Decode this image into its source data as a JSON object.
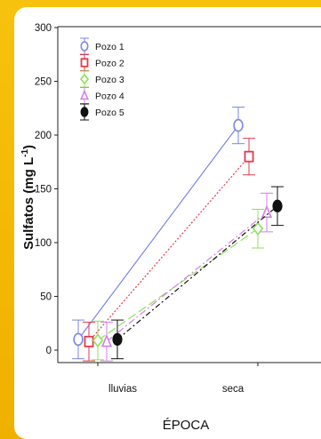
{
  "chart_data": {
    "type": "line",
    "xlabel": "ÉPOCA",
    "ylabel": "Sulfatos (mg L-1)",
    "ylabel_parts": {
      "main": "Sulfatos (mg L",
      "sup": "-1",
      "close": ")"
    },
    "categories": [
      "lluvias",
      "seca"
    ],
    "ylim": [
      -15,
      300
    ],
    "yticks": [
      0,
      50,
      100,
      150,
      200,
      250,
      300
    ],
    "ytick_labels": [
      "0",
      "50",
      "100",
      "150",
      "200",
      "250",
      "300"
    ],
    "legend_position": "top-left",
    "series": [
      {
        "name": "Pozo 1",
        "marker": "circle",
        "color": "#7b86e6",
        "dash": "",
        "values": [
          10,
          209
        ],
        "errors": [
          18,
          17
        ]
      },
      {
        "name": "Pozo 2",
        "marker": "square",
        "color": "#e23a4c",
        "dash": "2,2",
        "values": [
          8,
          180
        ],
        "errors": [
          18,
          17
        ]
      },
      {
        "name": "Pozo 3",
        "marker": "diamond",
        "color": "#8fe05a",
        "dash": "10,4",
        "values": [
          9,
          113
        ],
        "errors": [
          18,
          18
        ]
      },
      {
        "name": "Pozo 4",
        "marker": "triangle",
        "color": "#d57ee6",
        "dash": "8,3,2,3",
        "values": [
          8,
          128
        ],
        "errors": [
          18,
          18
        ]
      },
      {
        "name": "Pozo 5",
        "marker": "filled-circle",
        "color": "#111111",
        "dash": "6,3,2,3",
        "values": [
          10,
          134
        ],
        "errors": [
          18,
          18
        ]
      }
    ]
  }
}
